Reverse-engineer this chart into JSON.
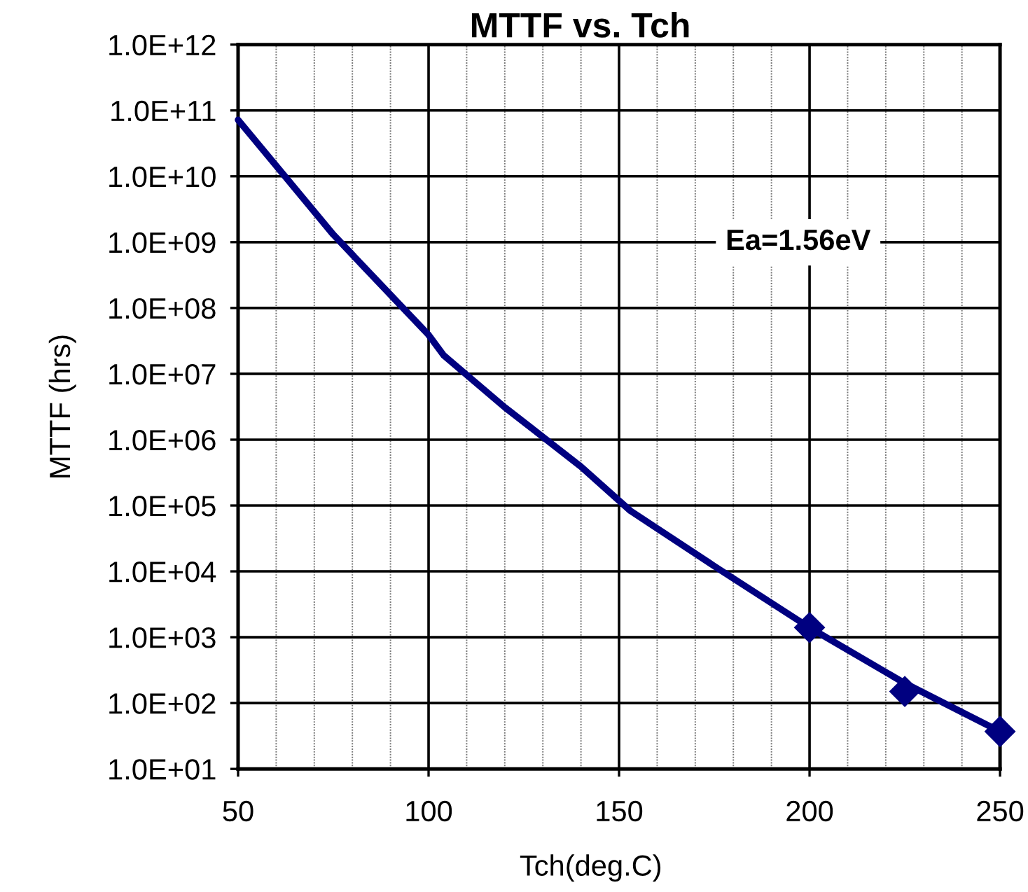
{
  "chart_data": {
    "type": "line",
    "title": "MTTF vs. Tch",
    "xlabel": "Tch(deg.C)",
    "ylabel": "MTTF (hrs)",
    "log": "y",
    "grid": true,
    "xlim": [
      50,
      250
    ],
    "xticks": [
      50,
      {
        "value": 60,
        "label": null
      },
      {
        "value": 70,
        "label": null
      },
      {
        "value": 80,
        "label": null
      },
      {
        "value": 90,
        "label": null
      },
      100,
      {
        "value": 110,
        "label": null
      },
      {
        "value": 120,
        "label": null
      },
      {
        "value": 130,
        "label": null
      },
      {
        "value": 140,
        "label": null
      },
      150,
      {
        "value": 160,
        "label": null
      },
      {
        "value": 170,
        "label": null
      },
      {
        "value": 180,
        "label": null
      },
      {
        "value": 190,
        "label": null
      },
      200,
      {
        "value": 210,
        "label": null
      },
      {
        "value": 220,
        "label": null
      },
      {
        "value": 230,
        "label": null
      },
      {
        "value": 240,
        "label": null
      },
      250
    ],
    "ylim": [
      10,
      1000000000000.0
    ],
    "yticks": [
      {
        "value": 10,
        "label": "1.0E+01"
      },
      {
        "value": 100,
        "label": "1.0E+02"
      },
      {
        "value": 1000,
        "label": "1.0E+03"
      },
      {
        "value": 10000,
        "label": "1.0E+04"
      },
      {
        "value": 100000,
        "label": "1.0E+05"
      },
      {
        "value": 1000000,
        "label": "1.0E+06"
      },
      {
        "value": 10000000,
        "label": "1.0E+07"
      },
      {
        "value": 100000000,
        "label": "1.0E+08"
      },
      {
        "value": 1000000000,
        "label": "1.0E+09"
      },
      {
        "value": 10000000000,
        "label": "1.0E+10"
      },
      {
        "value": 100000000000,
        "label": "1.0E+11"
      },
      {
        "value": 1000000000000,
        "label": "1.0E+12"
      }
    ],
    "annotations": [
      "Ea=1.56eV"
    ],
    "series": [
      {
        "color": "#000080",
        "marker": "none",
        "line_style": "solid",
        "x": [
          50,
          75,
          100,
          104,
          120,
          140,
          153,
          175,
          200,
          225,
          250
        ],
        "values": [
          72000000000.0,
          1300000000.0,
          39000000.0,
          19000000.0,
          3100000.0,
          390000.0,
          83000.0,
          12000.0,
          1400.0,
          200.0,
          37.0
        ]
      },
      {
        "type": "scatter",
        "color": "#000080",
        "marker": "diamond",
        "x": [
          200,
          225,
          250
        ],
        "values": [
          1400.0,
          150.0,
          37.0
        ]
      }
    ]
  }
}
